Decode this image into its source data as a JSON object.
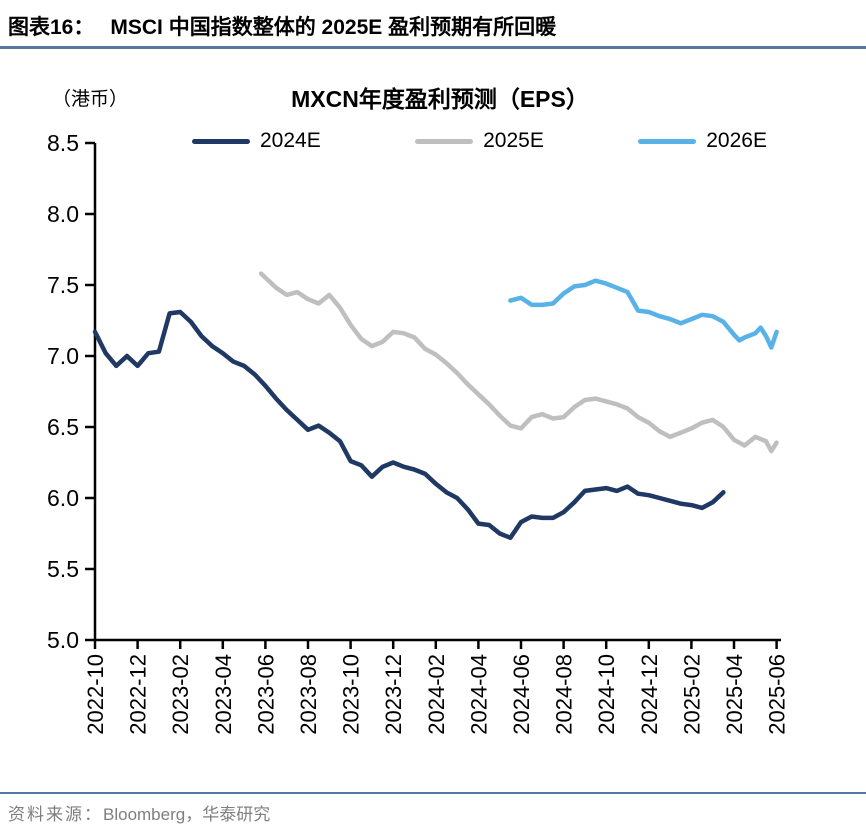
{
  "header": {
    "label": "图表16：",
    "title": "MSCI 中国指数整体的 2025E 盈利预期有所回暖"
  },
  "chart": {
    "unit_label": "（港币）",
    "title": "MXCN年度盈利预测（EPS）"
  },
  "footer": {
    "prefix": "资料来源：",
    "source": "Bloomberg，华泰研究"
  },
  "chart_data": {
    "type": "line",
    "title": "MXCN年度盈利预测（EPS）",
    "unit": "港币",
    "x_axis_note": "x values are months since 2022-10 (0 = 2022-10); ticks every 2 months",
    "x_tick_labels": [
      "2022-10",
      "2022-12",
      "2023-02",
      "2023-04",
      "2023-06",
      "2023-08",
      "2023-10",
      "2023-12",
      "2024-02",
      "2024-04",
      "2024-06",
      "2024-08",
      "2024-10",
      "2024-12",
      "2025-02",
      "2025-04",
      "2025-06"
    ],
    "months_per_tick": 2,
    "y_ticks": [
      8.5,
      8.0,
      7.5,
      7.0,
      6.5,
      6.0,
      5.5,
      5.0
    ],
    "ylim": [
      5.0,
      8.5
    ],
    "xlim_months": [
      0,
      32.2
    ],
    "grid": false,
    "legend_position": "top",
    "axis_color": "#000000",
    "series": [
      {
        "name": "2024E",
        "color": "#1f3864",
        "points": [
          [
            0,
            7.17
          ],
          [
            0.5,
            7.02
          ],
          [
            1,
            6.93
          ],
          [
            1.5,
            7.0
          ],
          [
            2,
            6.93
          ],
          [
            2.5,
            7.02
          ],
          [
            3,
            7.03
          ],
          [
            3.5,
            7.3
          ],
          [
            4,
            7.31
          ],
          [
            4.5,
            7.24
          ],
          [
            5,
            7.14
          ],
          [
            5.5,
            7.07
          ],
          [
            6,
            7.02
          ],
          [
            6.5,
            6.96
          ],
          [
            7,
            6.93
          ],
          [
            7.5,
            6.87
          ],
          [
            8,
            6.79
          ],
          [
            8.5,
            6.7
          ],
          [
            9,
            6.62
          ],
          [
            9.5,
            6.55
          ],
          [
            10,
            6.48
          ],
          [
            10.5,
            6.51
          ],
          [
            11,
            6.46
          ],
          [
            11.5,
            6.4
          ],
          [
            12,
            6.26
          ],
          [
            12.5,
            6.23
          ],
          [
            13,
            6.15
          ],
          [
            13.5,
            6.22
          ],
          [
            14,
            6.25
          ],
          [
            14.5,
            6.22
          ],
          [
            15,
            6.2
          ],
          [
            15.5,
            6.17
          ],
          [
            16,
            6.1
          ],
          [
            16.5,
            6.04
          ],
          [
            17,
            6.0
          ],
          [
            17.5,
            5.92
          ],
          [
            18,
            5.82
          ],
          [
            18.5,
            5.81
          ],
          [
            19,
            5.75
          ],
          [
            19.5,
            5.72
          ],
          [
            20,
            5.83
          ],
          [
            20.5,
            5.87
          ],
          [
            21,
            5.86
          ],
          [
            21.5,
            5.86
          ],
          [
            22,
            5.9
          ],
          [
            22.5,
            5.97
          ],
          [
            23,
            6.05
          ],
          [
            23.5,
            6.06
          ],
          [
            24,
            6.07
          ],
          [
            24.5,
            6.05
          ],
          [
            25,
            6.08
          ],
          [
            25.5,
            6.03
          ],
          [
            26,
            6.02
          ],
          [
            26.5,
            6.0
          ],
          [
            27,
            5.98
          ],
          [
            27.5,
            5.96
          ],
          [
            28,
            5.95
          ],
          [
            28.5,
            5.93
          ],
          [
            29,
            5.97
          ],
          [
            29.5,
            6.04
          ]
        ]
      },
      {
        "name": "2025E",
        "color": "#bfbfbf",
        "points": [
          [
            7.8,
            7.58
          ],
          [
            8.5,
            7.48
          ],
          [
            9,
            7.43
          ],
          [
            9.5,
            7.45
          ],
          [
            10,
            7.4
          ],
          [
            10.5,
            7.37
          ],
          [
            11,
            7.43
          ],
          [
            11.5,
            7.34
          ],
          [
            12,
            7.22
          ],
          [
            12.5,
            7.12
          ],
          [
            13,
            7.07
          ],
          [
            13.5,
            7.1
          ],
          [
            14,
            7.17
          ],
          [
            14.5,
            7.16
          ],
          [
            15,
            7.13
          ],
          [
            15.5,
            7.05
          ],
          [
            16,
            7.01
          ],
          [
            16.5,
            6.95
          ],
          [
            17,
            6.88
          ],
          [
            17.5,
            6.8
          ],
          [
            18,
            6.73
          ],
          [
            18.5,
            6.66
          ],
          [
            19,
            6.58
          ],
          [
            19.5,
            6.51
          ],
          [
            20,
            6.49
          ],
          [
            20.5,
            6.57
          ],
          [
            21,
            6.59
          ],
          [
            21.5,
            6.56
          ],
          [
            22,
            6.57
          ],
          [
            22.5,
            6.64
          ],
          [
            23,
            6.69
          ],
          [
            23.5,
            6.7
          ],
          [
            24,
            6.68
          ],
          [
            24.5,
            6.66
          ],
          [
            25,
            6.63
          ],
          [
            25.5,
            6.57
          ],
          [
            26,
            6.53
          ],
          [
            26.5,
            6.47
          ],
          [
            27,
            6.43
          ],
          [
            27.5,
            6.46
          ],
          [
            28,
            6.49
          ],
          [
            28.5,
            6.53
          ],
          [
            29,
            6.55
          ],
          [
            29.5,
            6.5
          ],
          [
            30,
            6.41
          ],
          [
            30.5,
            6.37
          ],
          [
            31,
            6.43
          ],
          [
            31.5,
            6.4
          ],
          [
            31.75,
            6.33
          ],
          [
            32,
            6.39
          ]
        ]
      },
      {
        "name": "2026E",
        "color": "#58b2e8",
        "points": [
          [
            19.5,
            7.39
          ],
          [
            20,
            7.41
          ],
          [
            20.5,
            7.36
          ],
          [
            21,
            7.36
          ],
          [
            21.5,
            7.37
          ],
          [
            22,
            7.44
          ],
          [
            22.5,
            7.49
          ],
          [
            23,
            7.5
          ],
          [
            23.5,
            7.53
          ],
          [
            24,
            7.51
          ],
          [
            24.5,
            7.48
          ],
          [
            25,
            7.45
          ],
          [
            25.5,
            7.32
          ],
          [
            26,
            7.31
          ],
          [
            26.5,
            7.28
          ],
          [
            27,
            7.26
          ],
          [
            27.5,
            7.23
          ],
          [
            28,
            7.26
          ],
          [
            28.5,
            7.29
          ],
          [
            29,
            7.28
          ],
          [
            29.5,
            7.24
          ],
          [
            30,
            7.15
          ],
          [
            30.25,
            7.11
          ],
          [
            30.5,
            7.13
          ],
          [
            31,
            7.16
          ],
          [
            31.25,
            7.2
          ],
          [
            31.5,
            7.14
          ],
          [
            31.75,
            7.06
          ],
          [
            32,
            7.17
          ]
        ]
      }
    ]
  }
}
